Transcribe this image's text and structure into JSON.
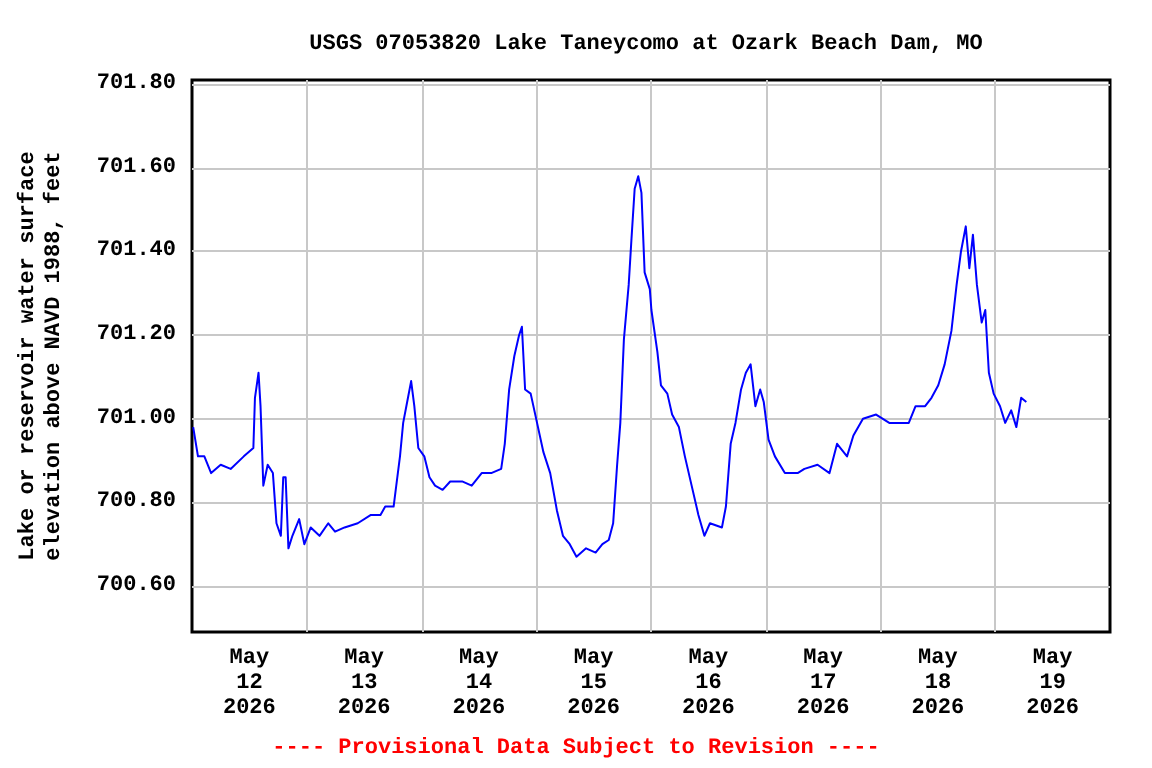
{
  "chart_data": {
    "type": "line",
    "title": "USGS 07053820 Lake Taneycomo at Ozark Beach Dam, MO",
    "ylabel": "Lake or reservoir water surface\nelevation above NAVD 1988, feet",
    "annotations": [
      "---- Provisional Data Subject to Revision ----"
    ],
    "xlim": [
      "2026-05-12T00:00",
      "2026-05-20T00:00"
    ],
    "xticks": [
      {
        "value": "2026-05-12T12:00",
        "label": "May\n12\n2026"
      },
      {
        "value": "2026-05-13T00:00",
        "label": null
      },
      {
        "value": "2026-05-13T12:00",
        "label": "May\n13\n2026"
      },
      {
        "value": "2026-05-14T00:00",
        "label": null
      },
      {
        "value": "2026-05-14T12:00",
        "label": "May\n14\n2026"
      },
      {
        "value": "2026-05-15T00:00",
        "label": null
      },
      {
        "value": "2026-05-15T12:00",
        "label": "May\n15\n2026"
      },
      {
        "value": "2026-05-16T00:00",
        "label": null
      },
      {
        "value": "2026-05-16T12:00",
        "label": "May\n16\n2026"
      },
      {
        "value": "2026-05-17T00:00",
        "label": null
      },
      {
        "value": "2026-05-17T12:00",
        "label": "May\n17\n2026"
      },
      {
        "value": "2026-05-18T00:00",
        "label": null
      },
      {
        "value": "2026-05-18T12:00",
        "label": "May\n18\n2026"
      },
      {
        "value": "2026-05-19T00:00",
        "label": null
      },
      {
        "value": "2026-05-19T12:00",
        "label": "May\n19\n2026"
      }
    ],
    "ylim": [
      700.49,
      701.81
    ],
    "yticks": [
      {
        "value": 700.6,
        "label": "700.60"
      },
      {
        "value": 700.8,
        "label": "700.80"
      },
      {
        "value": 701.0,
        "label": "701.00"
      },
      {
        "value": 701.2,
        "label": "701.20"
      },
      {
        "value": 701.4,
        "label": "701.40"
      },
      {
        "value": 701.6,
        "label": "701.60"
      },
      {
        "value": 701.8,
        "label": "701.80"
      }
    ],
    "grid": true,
    "marker": "none",
    "line_style": "solid",
    "series": [
      {
        "color": "#0000ff",
        "x": [
          "2026-05-12T00:15",
          "2026-05-12T01:15",
          "2026-05-12T02:35",
          "2026-05-12T04:00",
          "2026-05-12T06:00",
          "2026-05-12T08:05",
          "2026-05-12T10:50",
          "2026-05-12T12:50",
          "2026-05-12T13:10",
          "2026-05-12T13:55",
          "2026-05-12T14:20",
          "2026-05-12T14:55",
          "2026-05-12T15:50",
          "2026-05-12T16:55",
          "2026-05-12T17:40",
          "2026-05-12T18:35",
          "2026-05-12T19:05",
          "2026-05-12T19:35",
          "2026-05-12T20:10",
          "2026-05-12T21:00",
          "2026-05-12T22:25",
          "2026-05-12T23:30",
          "2026-05-13T00:50",
          "2026-05-13T02:40",
          "2026-05-13T04:30",
          "2026-05-13T05:55",
          "2026-05-13T07:55",
          "2026-05-13T10:40",
          "2026-05-13T13:25",
          "2026-05-13T15:25",
          "2026-05-13T16:25",
          "2026-05-13T18:10",
          "2026-05-13T18:50",
          "2026-05-13T19:30",
          "2026-05-13T20:10",
          "2026-05-13T21:00",
          "2026-05-13T21:50",
          "2026-05-13T22:30",
          "2026-05-13T23:20",
          "2026-05-14T00:35",
          "2026-05-14T01:40",
          "2026-05-14T02:50",
          "2026-05-14T04:25",
          "2026-05-14T06:00",
          "2026-05-14T08:30",
          "2026-05-14T10:30",
          "2026-05-14T12:35",
          "2026-05-14T14:35",
          "2026-05-14T16:40",
          "2026-05-14T17:25",
          "2026-05-14T18:20",
          "2026-05-14T19:25",
          "2026-05-14T20:25",
          "2026-05-14T21:00",
          "2026-05-14T21:40",
          "2026-05-14T22:50",
          "2026-05-15T00:10",
          "2026-05-15T01:30",
          "2026-05-15T02:55",
          "2026-05-15T04:20",
          "2026-05-15T05:35",
          "2026-05-15T07:00",
          "2026-05-15T08:25",
          "2026-05-15T10:25",
          "2026-05-15T12:25",
          "2026-05-15T13:50",
          "2026-05-15T15:10",
          "2026-05-15T16:05",
          "2026-05-15T16:55",
          "2026-05-15T17:35",
          "2026-05-15T18:20",
          "2026-05-15T19:20",
          "2026-05-15T19:55",
          "2026-05-15T20:35",
          "2026-05-15T21:20",
          "2026-05-15T22:00",
          "2026-05-15T22:40",
          "2026-05-15T23:45",
          "2026-05-16T00:05",
          "2026-05-16T01:20",
          "2026-05-16T02:05",
          "2026-05-16T03:25",
          "2026-05-16T04:25",
          "2026-05-16T05:50",
          "2026-05-16T07:05",
          "2026-05-16T08:30",
          "2026-05-16T09:55",
          "2026-05-16T11:10",
          "2026-05-16T12:20",
          "2026-05-16T14:50",
          "2026-05-16T15:40",
          "2026-05-16T16:40",
          "2026-05-16T17:40",
          "2026-05-16T18:50",
          "2026-05-16T19:50",
          "2026-05-16T20:50",
          "2026-05-16T21:50",
          "2026-05-16T22:50",
          "2026-05-16T23:35",
          "2026-05-17T00:35",
          "2026-05-17T01:55",
          "2026-05-17T04:00",
          "2026-05-17T06:40",
          "2026-05-17T08:05",
          "2026-05-17T10:50",
          "2026-05-17T13:20",
          "2026-05-17T14:55",
          "2026-05-17T17:00",
          "2026-05-17T18:20",
          "2026-05-17T20:20",
          "2026-05-17T23:05",
          "2026-05-18T01:50",
          "2026-05-18T05:55",
          "2026-05-18T07:20",
          "2026-05-18T09:20",
          "2026-05-18T10:40",
          "2026-05-18T12:05",
          "2026-05-18T13:25",
          "2026-05-18T14:50",
          "2026-05-18T15:55",
          "2026-05-18T16:50",
          "2026-05-18T17:50",
          "2026-05-18T18:35",
          "2026-05-18T19:20",
          "2026-05-18T20:10",
          "2026-05-18T21:10",
          "2026-05-18T21:55",
          "2026-05-18T22:40",
          "2026-05-18T23:40",
          "2026-05-19T01:00",
          "2026-05-19T02:05",
          "2026-05-19T03:20",
          "2026-05-19T04:25",
          "2026-05-19T05:25",
          "2026-05-19T06:30"
        ],
        "values": [
          700.98,
          700.91,
          700.91,
          700.87,
          700.89,
          700.88,
          700.91,
          700.93,
          701.05,
          701.11,
          701.03,
          700.84,
          700.89,
          700.87,
          700.75,
          700.72,
          700.86,
          700.86,
          700.69,
          700.72,
          700.76,
          700.7,
          700.74,
          700.72,
          700.75,
          700.73,
          700.74,
          700.75,
          700.77,
          700.77,
          700.79,
          700.79,
          700.85,
          700.91,
          700.99,
          701.04,
          701.09,
          701.03,
          700.93,
          700.91,
          700.86,
          700.84,
          700.83,
          700.85,
          700.85,
          700.84,
          700.87,
          700.87,
          700.88,
          700.94,
          701.07,
          701.15,
          701.2,
          701.22,
          701.07,
          701.06,
          700.99,
          700.92,
          700.87,
          700.78,
          700.72,
          700.7,
          700.67,
          700.69,
          700.68,
          700.7,
          700.71,
          700.75,
          700.89,
          700.99,
          701.19,
          701.32,
          701.43,
          701.55,
          701.58,
          701.54,
          701.35,
          701.31,
          701.26,
          701.16,
          701.08,
          701.06,
          701.01,
          700.98,
          700.91,
          700.84,
          700.77,
          700.72,
          700.75,
          700.74,
          700.79,
          700.94,
          700.99,
          701.07,
          701.11,
          701.13,
          701.03,
          701.07,
          701.04,
          700.95,
          700.91,
          700.87,
          700.87,
          700.88,
          700.89,
          700.87,
          700.94,
          700.91,
          700.96,
          701.0,
          701.01,
          700.99,
          700.99,
          701.03,
          701.03,
          701.05,
          701.08,
          701.13,
          701.21,
          701.32,
          701.4,
          701.46,
          701.36,
          701.44,
          701.32,
          701.23,
          701.26,
          701.11,
          701.06,
          701.03,
          700.99,
          701.02,
          700.98,
          701.05,
          701.04
        ]
      }
    ]
  }
}
